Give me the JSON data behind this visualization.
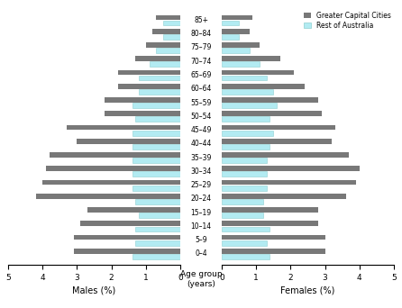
{
  "age_groups": [
    "0–4",
    "5–9",
    "10–14",
    "15–19",
    "20–24",
    "25–29",
    "30–34",
    "35–39",
    "40–44",
    "45–49",
    "50–54",
    "55–59",
    "60–64",
    "65–69",
    "70–74",
    "75–79",
    "80–84",
    "85+"
  ],
  "males_capital": [
    3.1,
    3.1,
    2.9,
    2.7,
    4.2,
    4.0,
    3.9,
    3.8,
    3.0,
    3.3,
    2.2,
    2.2,
    1.8,
    1.8,
    1.3,
    1.0,
    0.8,
    0.7
  ],
  "males_rest": [
    1.4,
    1.3,
    1.3,
    1.2,
    1.3,
    1.4,
    1.4,
    1.4,
    1.4,
    1.4,
    1.3,
    1.4,
    1.2,
    1.2,
    0.9,
    0.7,
    0.5,
    0.5
  ],
  "females_capital": [
    3.0,
    3.0,
    2.8,
    2.8,
    3.6,
    3.9,
    4.0,
    3.7,
    3.2,
    3.3,
    2.9,
    2.8,
    2.4,
    2.1,
    1.7,
    1.1,
    0.8,
    0.9
  ],
  "females_rest": [
    1.4,
    1.3,
    1.4,
    1.2,
    1.2,
    1.3,
    1.3,
    1.3,
    1.4,
    1.5,
    1.4,
    1.6,
    1.5,
    1.3,
    1.1,
    0.8,
    0.5,
    0.5
  ],
  "color_capital": "#787878",
  "color_rest": "#b2ebf2",
  "color_rest_edge": "#8ecfcf",
  "bar_height": 0.38,
  "bar_gap": 0.0,
  "xlim": 5,
  "xlabel_males": "Males (%)",
  "xlabel_females": "Females (%)",
  "xlabel_center": "Age group\n(years)",
  "legend_capital": "Greater Capital Cities",
  "legend_rest": "Rest of Australia",
  "xticks": [
    0,
    1,
    2,
    3,
    4,
    5
  ]
}
